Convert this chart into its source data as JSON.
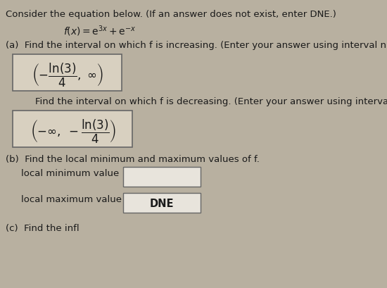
{
  "bg_color": "#b8b0a0",
  "box_bg": "#d8d0c0",
  "white_box": "#f0ece4",
  "text_color": "#1a1a1a",
  "title_line": "Consider the equation below. (If an answer does not exist, enter DNE.)",
  "part_a_label": "(a)  Find the interval on which f is increasing. (Enter your answer using interval n",
  "decreasing_label": "    Find the interval on which f is decreasing. (Enter your answer using interval no",
  "part_b_label": "(b)  Find the local minimum and maximum values of f.",
  "local_min_label": "   local minimum value",
  "local_max_label": "   local maximum value",
  "local_max_value": "DNE",
  "part_c_label": "(c)  Find the infl",
  "box_edgecolor": "#666666",
  "input_box_color": "#e8e4dc"
}
